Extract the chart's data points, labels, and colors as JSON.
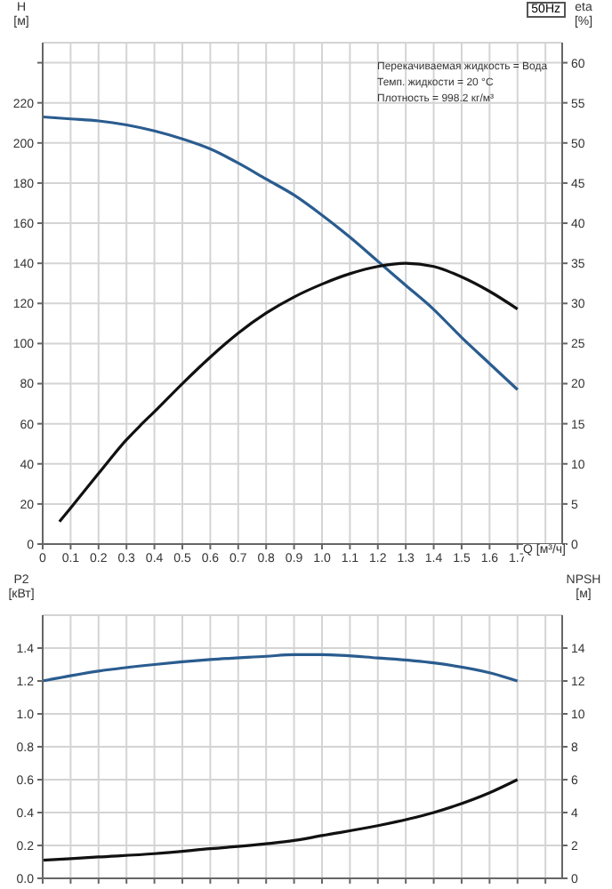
{
  "chart_data": [
    {
      "type": "line",
      "title": "50Hz",
      "xlabel": "Q [м³/ч]",
      "ylabel": "H [м]",
      "y2label": "eta [%]",
      "annotations": [
        "Перекачиваемая жидкость = Вода",
        "Темп. жидкости = 20 °C",
        "Плотность = 998.2 кг/м³"
      ],
      "x": [
        0,
        0.1,
        0.2,
        0.3,
        0.4,
        0.5,
        0.6,
        0.7,
        0.8,
        0.9,
        1.0,
        1.1,
        1.2,
        1.3,
        1.4,
        1.5,
        1.6,
        1.7
      ],
      "series": [
        {
          "color": "#2a5c8f",
          "values": [
            213,
            212,
            211,
            209,
            206,
            202,
            197,
            190,
            182,
            174,
            164,
            153,
            141,
            129,
            117,
            103,
            90,
            77
          ]
        },
        {
          "color": "#111111",
          "axis": "y2",
          "x": [
            0.06,
            0.1,
            0.2,
            0.3,
            0.35,
            0.4,
            0.5,
            0.6,
            0.7,
            0.8,
            0.9,
            1.0,
            1.1,
            1.2,
            1.3,
            1.4,
            1.5,
            1.6,
            1.7
          ],
          "values": [
            2.8,
            4.5,
            8.8,
            13,
            14.8,
            16.5,
            20,
            23.3,
            26.3,
            28.8,
            30.8,
            32.4,
            33.7,
            34.6,
            35,
            34.6,
            33.3,
            31.5,
            29.3
          ]
        }
      ],
      "xlim": [
        0,
        1.86
      ],
      "xticks": [
        {
          "value": 0,
          "label": "0"
        },
        0.1,
        0.2,
        0.3,
        0.4,
        0.5,
        0.6,
        0.7,
        0.8,
        0.9,
        {
          "value": 1,
          "label": "1.0"
        },
        1.1,
        1.2,
        1.3,
        1.4,
        1.5,
        1.6,
        1.7,
        {
          "value": 1.8,
          "label": null
        }
      ],
      "ylim": [
        0,
        250
      ],
      "yticks": [
        0,
        20,
        40,
        60,
        80,
        100,
        120,
        140,
        160,
        180,
        200,
        220,
        {
          "value": 240,
          "label": null
        }
      ],
      "y2lim": [
        0,
        62.5
      ],
      "y2ticks": [
        0,
        5,
        10,
        15,
        20,
        25,
        30,
        35,
        40,
        45,
        50,
        55,
        60
      ],
      "grid": true,
      "legend": false,
      "marker": "none"
    },
    {
      "type": "line",
      "ylabel": "P2 [кВт]",
      "y2label": "NPSH [м]",
      "x": [
        0,
        0.2,
        0.4,
        0.6,
        0.8,
        0.9,
        1.0,
        1.2,
        1.4,
        1.6,
        1.7
      ],
      "series": [
        {
          "color": "#2a5c8f",
          "values": [
            1.2,
            1.26,
            1.3,
            1.33,
            1.35,
            1.36,
            1.36,
            1.34,
            1.31,
            1.25,
            1.2
          ]
        },
        {
          "color": "#111111",
          "axis": "y2",
          "values": [
            1.1,
            1.3,
            1.5,
            1.8,
            2.1,
            2.3,
            2.6,
            3.2,
            4.0,
            5.2,
            6.0
          ]
        }
      ],
      "xlim": [
        0,
        1.86
      ],
      "xticks": [
        0,
        0.1,
        0.2,
        0.3,
        0.4,
        0.5,
        0.6,
        0.7,
        0.8,
        0.9,
        1.0,
        1.1,
        1.2,
        1.3,
        1.4,
        1.5,
        1.6,
        1.7,
        1.8
      ],
      "ylim": [
        0,
        1.6
      ],
      "yticks": [
        {
          "value": 0,
          "label": "0.0"
        },
        0.2,
        0.4,
        0.6,
        0.8,
        {
          "value": 1,
          "label": "1.0"
        },
        1.2,
        1.4
      ],
      "y2lim": [
        0,
        16
      ],
      "y2ticks": [
        0,
        2,
        4,
        6,
        8,
        10,
        12,
        14
      ],
      "tick_labels": "y",
      "grid": true,
      "legend": false,
      "marker": "none"
    }
  ]
}
